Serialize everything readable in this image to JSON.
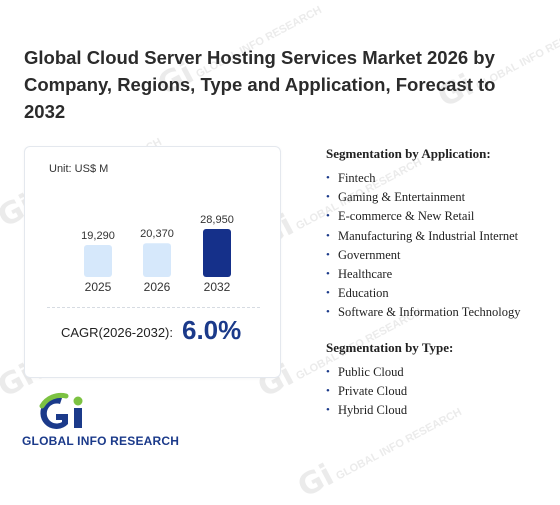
{
  "page": {
    "title": "Global Cloud Server Hosting Services Market 2026 by Company, Regions, Type and Application, Forecast to 2032"
  },
  "watermark": {
    "text": "GLOBAL INFO RESEARCH",
    "mark": "Gi"
  },
  "chart": {
    "unit": "Unit: US$ M",
    "cagr_label": "CAGR(2026-2032):",
    "cagr_value": "6.0%"
  },
  "chart_data": {
    "type": "bar",
    "categories": [
      "2025",
      "2026",
      "2032"
    ],
    "values": [
      19290,
      20370,
      28950
    ],
    "value_labels": [
      "19,290",
      "20,370",
      "28,950"
    ],
    "colors": [
      "#d6e8fb",
      "#d6e8fb",
      "#15308a"
    ],
    "title": "",
    "xlabel": "",
    "ylabel": "",
    "ylim": [
      0,
      28950
    ],
    "grid": false
  },
  "segments": {
    "application": {
      "title": "Segmentation by Application:",
      "items": [
        "Fintech",
        "Gaming & Entertainment",
        "E-commerce & New Retail",
        "Manufacturing & Industrial Internet",
        "Government",
        "Healthcare",
        "Education",
        "Software & Information Technology"
      ]
    },
    "type": {
      "title": "Segmentation by Type:",
      "items": [
        "Public Cloud",
        "Private Cloud",
        "Hybrid Cloud"
      ]
    }
  },
  "logo": {
    "text": "GLOBAL INFO RESEARCH",
    "mark": "Gi",
    "colors": {
      "blue": "#1b3a8a",
      "green": "#7cc242"
    }
  }
}
